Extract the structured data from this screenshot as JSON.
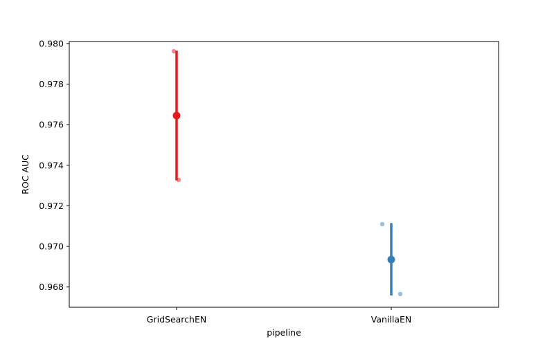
{
  "chart_data": {
    "type": "scatter",
    "title": "",
    "xlabel": "pipeline",
    "ylabel": "ROC AUC",
    "categories": [
      "GridSearchEN",
      "VanillaEN"
    ],
    "ylim": [
      0.967,
      0.9801
    ],
    "yticks": [
      0.968,
      0.97,
      0.972,
      0.974,
      0.976,
      0.978,
      0.98
    ],
    "ytick_labels": [
      "0.968",
      "0.970",
      "0.972",
      "0.974",
      "0.976",
      "0.978",
      "0.980"
    ],
    "grid": false,
    "legend": "none",
    "series": [
      {
        "category": "GridSearchEN",
        "color": "#e41a1c",
        "mean": 0.97645,
        "ci": [
          0.97325,
          0.97965
        ],
        "points": [
          0.97962,
          0.97328
        ]
      },
      {
        "category": "VanillaEN",
        "color": "#377eb8",
        "mean": 0.96935,
        "ci": [
          0.96758,
          0.97115
        ],
        "points": [
          0.9711,
          0.96765
        ]
      }
    ]
  }
}
